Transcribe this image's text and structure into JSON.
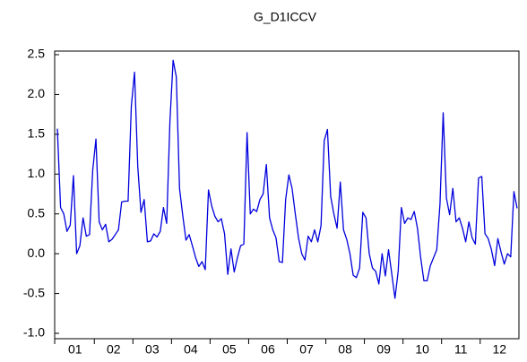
{
  "chart_data": {
    "type": "line",
    "title": "G_D1ICCV",
    "categories": [
      null,
      null,
      null,
      null,
      null,
      "01",
      null,
      null,
      null,
      null,
      null,
      null,
      null,
      null,
      null,
      null,
      null,
      "02",
      null,
      null,
      null,
      null,
      null,
      null,
      null,
      null,
      null,
      null,
      null,
      "03",
      null,
      null,
      null,
      null,
      null,
      null,
      null,
      null,
      null,
      null,
      null,
      "04",
      null,
      null,
      null,
      null,
      null,
      null,
      null,
      null,
      null,
      null,
      null,
      "05",
      null,
      null,
      null,
      null,
      null,
      null,
      null,
      null,
      null,
      null,
      null,
      "06",
      null,
      null,
      null,
      null,
      null,
      null,
      null,
      null,
      null,
      null,
      null,
      "07",
      null,
      null,
      null,
      null,
      null,
      null,
      null,
      null,
      null,
      null,
      null,
      "08",
      null,
      null,
      null,
      null,
      null,
      null,
      null,
      null,
      null,
      null,
      null,
      "09",
      null,
      null,
      null,
      null,
      null,
      null,
      null,
      null,
      null,
      null,
      null,
      "10",
      null,
      null,
      null,
      null,
      null,
      null,
      null,
      null,
      null,
      null,
      null,
      "11",
      null,
      null,
      null,
      null,
      null,
      null,
      null,
      null,
      null,
      null,
      null,
      "12",
      null,
      null,
      null,
      null,
      null,
      null
    ],
    "values": [
      1.57,
      0.58,
      0.5,
      0.28,
      0.36,
      0.98,
      0.0,
      0.1,
      0.45,
      0.22,
      0.24,
      1.05,
      1.44,
      0.4,
      0.3,
      0.37,
      0.15,
      0.18,
      0.24,
      0.3,
      0.65,
      0.66,
      0.66,
      1.85,
      2.28,
      1.1,
      0.52,
      0.68,
      0.15,
      0.16,
      0.25,
      0.21,
      0.28,
      0.58,
      0.38,
      1.65,
      2.43,
      2.22,
      0.82,
      0.48,
      0.17,
      0.24,
      0.1,
      -0.05,
      -0.16,
      -0.1,
      -0.2,
      0.8,
      0.6,
      0.47,
      0.4,
      0.44,
      0.25,
      -0.26,
      0.06,
      -0.23,
      -0.05,
      0.1,
      0.12,
      1.52,
      0.5,
      0.56,
      0.53,
      0.68,
      0.75,
      1.12,
      0.45,
      0.3,
      0.2,
      -0.1,
      -0.11,
      0.68,
      0.99,
      0.82,
      0.5,
      0.2,
      0.0,
      -0.08,
      0.22,
      0.15,
      0.3,
      0.15,
      0.35,
      1.42,
      1.56,
      0.72,
      0.5,
      0.32,
      0.9,
      0.3,
      0.18,
      0.0,
      -0.27,
      -0.3,
      -0.18,
      0.52,
      0.45,
      0.0,
      -0.18,
      -0.22,
      -0.38,
      0.0,
      -0.28,
      0.05,
      -0.25,
      -0.56,
      -0.22,
      0.58,
      0.38,
      0.45,
      0.43,
      0.53,
      0.32,
      -0.05,
      -0.34,
      -0.34,
      -0.15,
      -0.05,
      0.05,
      0.62,
      1.77,
      0.7,
      0.49,
      0.82,
      0.4,
      0.45,
      0.32,
      0.15,
      0.4,
      0.2,
      0.12,
      0.95,
      0.97,
      0.25,
      0.19,
      0.05,
      -0.15,
      0.19,
      0.02,
      -0.13,
      0.0,
      -0.04,
      0.78,
      0.57
    ],
    "color": "#0000dd",
    "ylim": [
      -1.0,
      2.5
    ],
    "yticks": [
      {
        "value": -1.0,
        "label": "-1.0"
      },
      -0.5,
      {
        "value": 0.0,
        "label": "0.0"
      },
      0.5,
      {
        "value": 1.0,
        "label": "1.0"
      },
      1.5,
      {
        "value": 2.0,
        "label": "2.0"
      },
      2.5
    ],
    "grid": false
  }
}
